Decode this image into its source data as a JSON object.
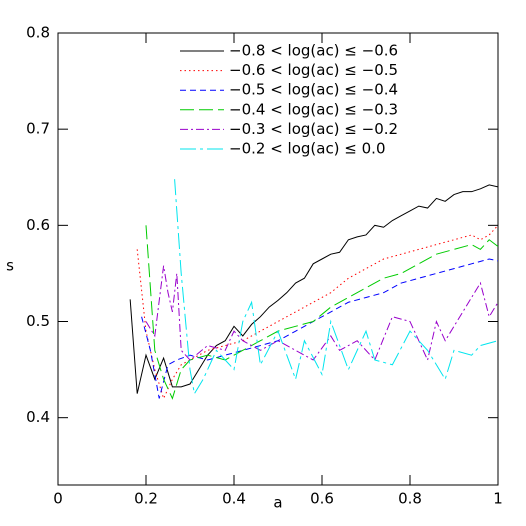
{
  "chart_data": {
    "type": "line",
    "xlabel": "a",
    "ylabel": "s",
    "xlim": [
      0,
      1
    ],
    "ylim": [
      0.33,
      0.8
    ],
    "xticks": [
      0,
      0.2,
      0.4,
      0.6,
      0.8,
      1
    ],
    "yticks": [
      0.4,
      0.5,
      0.6,
      0.7,
      0.8
    ],
    "legend": "top-center",
    "series": [
      {
        "name": "−0.8 < log(ac) ≤ −0.6",
        "color": "#000000",
        "dash": "none",
        "x": [
          0.164,
          0.18,
          0.2,
          0.22,
          0.24,
          0.26,
          0.28,
          0.3,
          0.32,
          0.34,
          0.36,
          0.38,
          0.4,
          0.42,
          0.44,
          0.46,
          0.48,
          0.5,
          0.52,
          0.54,
          0.56,
          0.58,
          0.6,
          0.62,
          0.64,
          0.66,
          0.68,
          0.7,
          0.72,
          0.74,
          0.76,
          0.78,
          0.8,
          0.82,
          0.84,
          0.86,
          0.88,
          0.9,
          0.92,
          0.94,
          0.96,
          0.98,
          1.0
        ],
        "values": [
          0.523,
          0.425,
          0.465,
          0.44,
          0.462,
          0.432,
          0.432,
          0.435,
          0.45,
          0.465,
          0.475,
          0.48,
          0.495,
          0.485,
          0.497,
          0.505,
          0.515,
          0.522,
          0.53,
          0.54,
          0.545,
          0.56,
          0.565,
          0.57,
          0.572,
          0.585,
          0.588,
          0.59,
          0.6,
          0.598,
          0.605,
          0.61,
          0.615,
          0.62,
          0.618,
          0.628,
          0.625,
          0.632,
          0.635,
          0.635,
          0.638,
          0.642,
          0.64
        ]
      },
      {
        "name": "−0.6 < log(ac) ≤ −0.5",
        "color": "#ff0000",
        "dash": "1.5,3",
        "x": [
          0.18,
          0.2,
          0.22,
          0.24,
          0.26,
          0.28,
          0.3,
          0.34,
          0.38,
          0.42,
          0.46,
          0.5,
          0.54,
          0.58,
          0.62,
          0.66,
          0.7,
          0.74,
          0.78,
          0.82,
          0.86,
          0.9,
          0.94,
          0.96,
          0.98,
          1.0
        ],
        "values": [
          0.575,
          0.49,
          0.45,
          0.42,
          0.44,
          0.455,
          0.46,
          0.47,
          0.475,
          0.48,
          0.49,
          0.5,
          0.51,
          0.52,
          0.53,
          0.545,
          0.555,
          0.565,
          0.57,
          0.575,
          0.58,
          0.585,
          0.59,
          0.585,
          0.59,
          0.6
        ]
      },
      {
        "name": "−0.5 < log(ac) ≤ −0.4",
        "color": "#0000ff",
        "dash": "6,4",
        "x": [
          0.19,
          0.21,
          0.23,
          0.25,
          0.27,
          0.3,
          0.34,
          0.38,
          0.42,
          0.46,
          0.5,
          0.54,
          0.58,
          0.62,
          0.66,
          0.7,
          0.74,
          0.78,
          0.82,
          0.86,
          0.9,
          0.94,
          0.98,
          1.0
        ],
        "values": [
          0.505,
          0.47,
          0.42,
          0.455,
          0.46,
          0.465,
          0.46,
          0.465,
          0.47,
          0.475,
          0.48,
          0.49,
          0.5,
          0.51,
          0.52,
          0.525,
          0.53,
          0.54,
          0.545,
          0.55,
          0.555,
          0.56,
          0.565,
          0.563
        ]
      },
      {
        "name": "−0.4 < log(ac) ≤ −0.3",
        "color": "#00cc00",
        "dash": "14,5",
        "x": [
          0.2,
          0.22,
          0.24,
          0.26,
          0.28,
          0.3,
          0.34,
          0.38,
          0.42,
          0.46,
          0.5,
          0.54,
          0.58,
          0.62,
          0.66,
          0.7,
          0.74,
          0.78,
          0.82,
          0.86,
          0.9,
          0.94,
          0.96,
          0.98,
          1.0
        ],
        "values": [
          0.6,
          0.47,
          0.44,
          0.42,
          0.45,
          0.46,
          0.465,
          0.46,
          0.47,
          0.48,
          0.49,
          0.495,
          0.5,
          0.515,
          0.525,
          0.535,
          0.545,
          0.55,
          0.56,
          0.57,
          0.575,
          0.58,
          0.575,
          0.585,
          0.578
        ]
      },
      {
        "name": "−0.3 < log(ac) ≤ −0.2",
        "color": "#9900cc",
        "dash": "8,3,2,3",
        "x": [
          0.2,
          0.22,
          0.24,
          0.25,
          0.26,
          0.27,
          0.28,
          0.3,
          0.34,
          0.38,
          0.4,
          0.42,
          0.46,
          0.5,
          0.54,
          0.58,
          0.62,
          0.64,
          0.68,
          0.72,
          0.76,
          0.8,
          0.84,
          0.86,
          0.88,
          0.92,
          0.96,
          0.98,
          1.0
        ],
        "values": [
          0.5,
          0.485,
          0.558,
          0.53,
          0.51,
          0.55,
          0.47,
          0.46,
          0.475,
          0.47,
          0.49,
          0.48,
          0.47,
          0.48,
          0.47,
          0.46,
          0.485,
          0.47,
          0.48,
          0.46,
          0.505,
          0.5,
          0.46,
          0.5,
          0.48,
          0.51,
          0.54,
          0.505,
          0.52
        ]
      },
      {
        "name": "−0.2 < log(ac) ≤ 0.0",
        "color": "#00e5ee",
        "dash": "16,4,3,4",
        "x": [
          0.265,
          0.28,
          0.3,
          0.31,
          0.33,
          0.36,
          0.4,
          0.42,
          0.44,
          0.46,
          0.5,
          0.54,
          0.56,
          0.6,
          0.62,
          0.66,
          0.7,
          0.72,
          0.76,
          0.8,
          0.84,
          0.86,
          0.88,
          0.9,
          0.94,
          0.96,
          1.0
        ],
        "values": [
          0.648,
          0.55,
          0.45,
          0.425,
          0.44,
          0.47,
          0.45,
          0.5,
          0.52,
          0.455,
          0.49,
          0.44,
          0.48,
          0.445,
          0.5,
          0.45,
          0.49,
          0.46,
          0.455,
          0.49,
          0.47,
          0.455,
          0.44,
          0.47,
          0.465,
          0.475,
          0.48
        ]
      }
    ]
  }
}
